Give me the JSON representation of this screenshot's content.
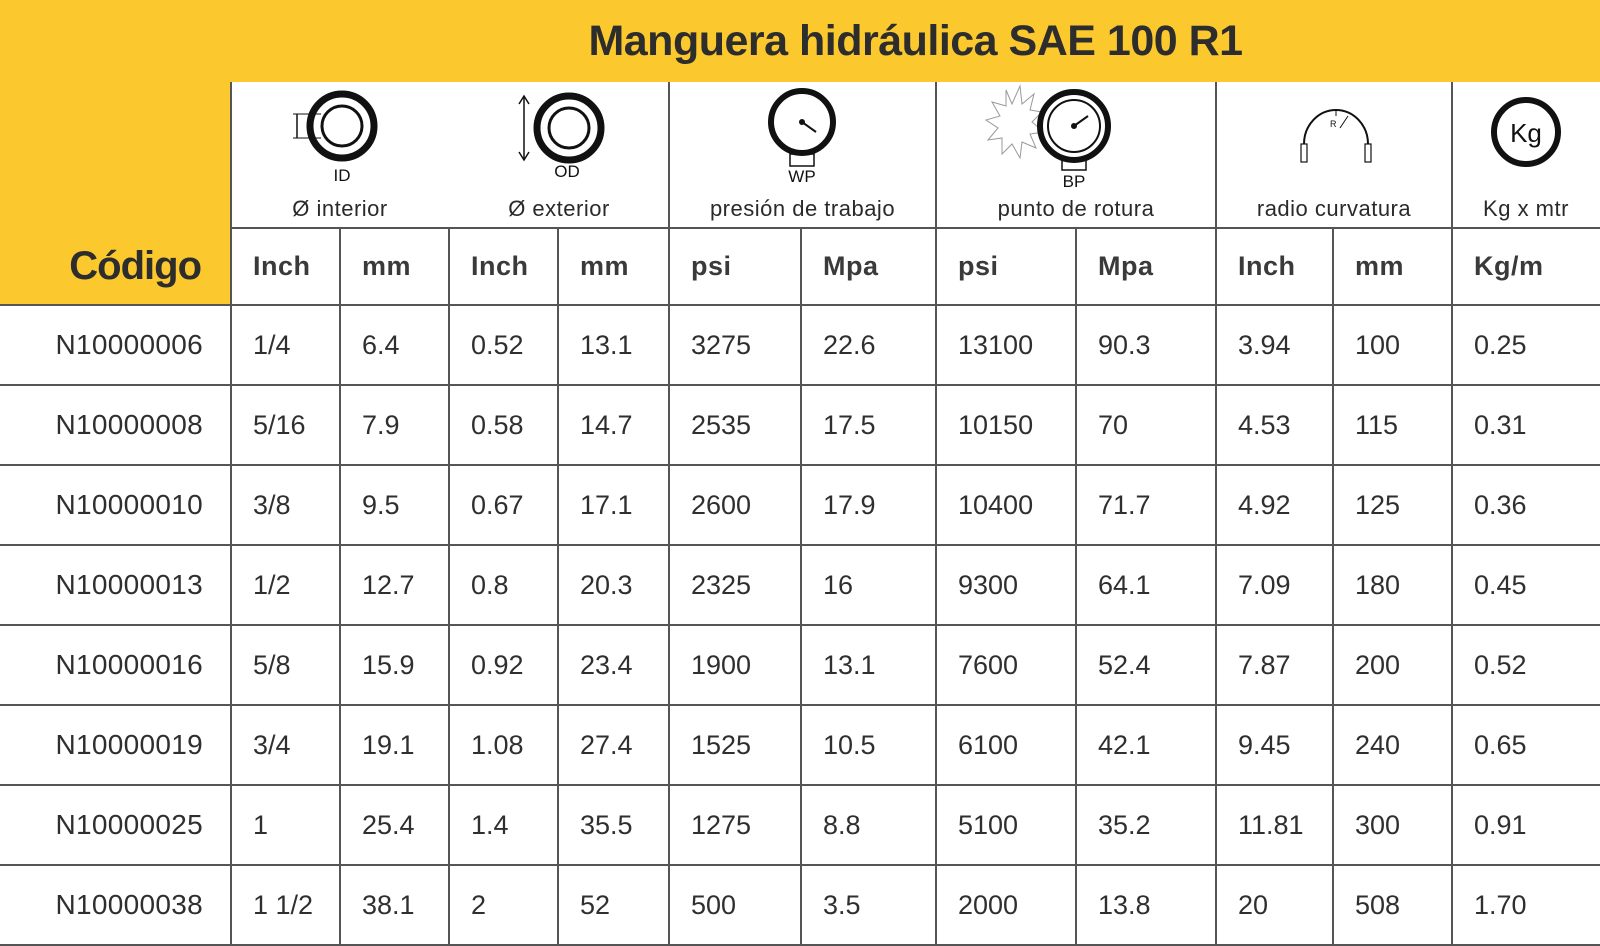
{
  "title": "Manguera hidráulica SAE 100 R1",
  "code_header": "Código",
  "groups": [
    {
      "label": "Ø interior",
      "icon": "inner-diameter-icon",
      "icon_text": "ID"
    },
    {
      "label": "Ø exterior",
      "icon": "outer-diameter-icon",
      "icon_text": "OD"
    },
    {
      "label": "presión de trabajo",
      "icon": "pressure-gauge-icon",
      "icon_text": "WP"
    },
    {
      "label": "punto de rotura",
      "icon": "burst-gauge-icon",
      "icon_text": "BP"
    },
    {
      "label": "radio curvatura",
      "icon": "bend-radius-icon",
      "icon_text": "R"
    },
    {
      "label": "Kg x mtr",
      "icon": "weight-icon",
      "icon_text": "Kg"
    }
  ],
  "units": [
    "Inch",
    "mm",
    "Inch",
    "mm",
    "psi",
    "Mpa",
    "psi",
    "Mpa",
    "Inch",
    "mm",
    "Kg/m"
  ],
  "rows": [
    {
      "code": "N10000006",
      "values": [
        "1/4",
        "6.4",
        "0.52",
        "13.1",
        "3275",
        "22.6",
        "13100",
        "90.3",
        "3.94",
        "100",
        "0.25"
      ]
    },
    {
      "code": "N10000008",
      "values": [
        "5/16",
        "7.9",
        "0.58",
        "14.7",
        "2535",
        "17.5",
        "10150",
        "70",
        "4.53",
        "115",
        "0.31"
      ]
    },
    {
      "code": "N10000010",
      "values": [
        "3/8",
        "9.5",
        "0.67",
        "17.1",
        "2600",
        "17.9",
        "10400",
        "71.7",
        "4.92",
        "125",
        "0.36"
      ]
    },
    {
      "code": "N10000013",
      "values": [
        "1/2",
        "12.7",
        "0.8",
        "20.3",
        "2325",
        "16",
        "9300",
        "64.1",
        "7.09",
        "180",
        "0.45"
      ]
    },
    {
      "code": "N10000016",
      "values": [
        "5/8",
        "15.9",
        "0.92",
        "23.4",
        "1900",
        "13.1",
        "7600",
        "52.4",
        "7.87",
        "200",
        "0.52"
      ]
    },
    {
      "code": "N10000019",
      "values": [
        "3/4",
        "19.1",
        "1.08",
        "27.4",
        "1525",
        "10.5",
        "6100",
        "42.1",
        "9.45",
        "240",
        "0.65"
      ]
    },
    {
      "code": "N10000025",
      "values": [
        "1",
        "25.4",
        "1.4",
        "35.5",
        "1275",
        "8.8",
        "5100",
        "35.2",
        "11.81",
        "300",
        "0.91"
      ]
    },
    {
      "code": "N10000038",
      "values": [
        "1 1/2",
        "38.1",
        "2",
        "52",
        "500",
        "3.5",
        "2000",
        "13.8",
        "20",
        "508",
        "1.70"
      ]
    }
  ],
  "colors": {
    "accent": "#FBC92E",
    "grid": "#555555",
    "text": "#2f2f2f"
  }
}
